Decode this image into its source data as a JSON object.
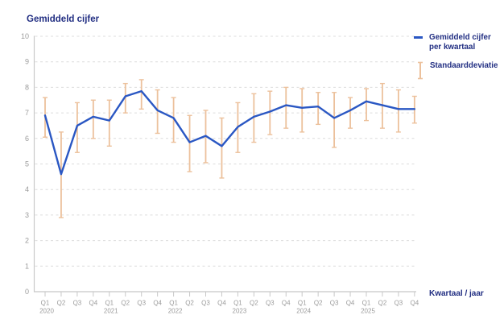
{
  "title": "Gemiddeld cijfer",
  "x_axis_label": "Kwartaal / jaar",
  "legend": {
    "series_label": "Gemiddeld cijfer per kwartaal",
    "sd_label": "Standaarddeviatie"
  },
  "colors": {
    "line": "#2a57c3",
    "error_bar": "#ecc19c",
    "heading_text": "#212e82",
    "tick_text": "#9b9b9b",
    "gridline": "#dcdcdc",
    "axis": "#c8c8c8"
  },
  "chart_data": {
    "type": "line",
    "title": "Gemiddeld cijfer",
    "xlabel": "Kwartaal / jaar",
    "ylabel": "Gemiddeld cijfer",
    "ylim": [
      0,
      10
    ],
    "y_ticks": [
      0,
      1,
      2,
      3,
      4,
      5,
      6,
      7,
      8,
      9,
      10
    ],
    "grid": true,
    "grid_style": "dashed",
    "legend_position": "top-right",
    "series_name": "Gemiddeld cijfer per kwartaal",
    "error_bars_name": "Standaarddeviatie",
    "points": [
      {
        "quarter": "Q1",
        "year": "2020",
        "value": 6.9,
        "sd_low": 6.05,
        "sd_high": 7.6
      },
      {
        "quarter": "Q2",
        "year": "",
        "value": 4.6,
        "sd_low": 2.9,
        "sd_high": 6.25
      },
      {
        "quarter": "Q3",
        "year": "",
        "value": 6.5,
        "sd_low": 5.45,
        "sd_high": 7.4
      },
      {
        "quarter": "Q4",
        "year": "",
        "value": 6.85,
        "sd_low": 6.0,
        "sd_high": 7.5
      },
      {
        "quarter": "Q1",
        "year": "2021",
        "value": 6.7,
        "sd_low": 5.7,
        "sd_high": 7.5
      },
      {
        "quarter": "Q2",
        "year": "",
        "value": 7.65,
        "sd_low": 7.0,
        "sd_high": 8.15
      },
      {
        "quarter": "Q3",
        "year": "",
        "value": 7.85,
        "sd_low": 7.15,
        "sd_high": 8.3
      },
      {
        "quarter": "Q4",
        "year": "",
        "value": 7.1,
        "sd_low": 6.2,
        "sd_high": 7.9
      },
      {
        "quarter": "Q1",
        "year": "2022",
        "value": 6.8,
        "sd_low": 5.85,
        "sd_high": 7.6
      },
      {
        "quarter": "Q2",
        "year": "",
        "value": 5.85,
        "sd_low": 4.7,
        "sd_high": 6.9
      },
      {
        "quarter": "Q3",
        "year": "",
        "value": 6.1,
        "sd_low": 5.05,
        "sd_high": 7.1
      },
      {
        "quarter": "Q4",
        "year": "",
        "value": 5.7,
        "sd_low": 4.45,
        "sd_high": 6.8
      },
      {
        "quarter": "Q1",
        "year": "2023",
        "value": 6.45,
        "sd_low": 5.45,
        "sd_high": 7.4
      },
      {
        "quarter": "Q2",
        "year": "",
        "value": 6.85,
        "sd_low": 5.85,
        "sd_high": 7.75
      },
      {
        "quarter": "Q3",
        "year": "",
        "value": 7.05,
        "sd_low": 6.15,
        "sd_high": 7.85
      },
      {
        "quarter": "Q4",
        "year": "",
        "value": 7.3,
        "sd_low": 6.4,
        "sd_high": 8.0
      },
      {
        "quarter": "Q1",
        "year": "2024",
        "value": 7.2,
        "sd_low": 6.25,
        "sd_high": 7.95
      },
      {
        "quarter": "Q2",
        "year": "",
        "value": 7.25,
        "sd_low": 6.55,
        "sd_high": 7.8
      },
      {
        "quarter": "Q3",
        "year": "",
        "value": 6.8,
        "sd_low": 5.65,
        "sd_high": 7.8
      },
      {
        "quarter": "Q4",
        "year": "",
        "value": 7.1,
        "sd_low": 6.4,
        "sd_high": 7.6
      },
      {
        "quarter": "Q1",
        "year": "2025",
        "value": 7.45,
        "sd_low": 6.7,
        "sd_high": 7.95
      },
      {
        "quarter": "Q2",
        "year": "",
        "value": 7.3,
        "sd_low": 6.4,
        "sd_high": 8.15
      },
      {
        "quarter": "Q3",
        "year": "",
        "value": 7.15,
        "sd_low": 6.25,
        "sd_high": 7.9
      },
      {
        "quarter": "Q4",
        "year": "",
        "value": 7.15,
        "sd_low": 6.6,
        "sd_high": 7.65
      }
    ]
  }
}
